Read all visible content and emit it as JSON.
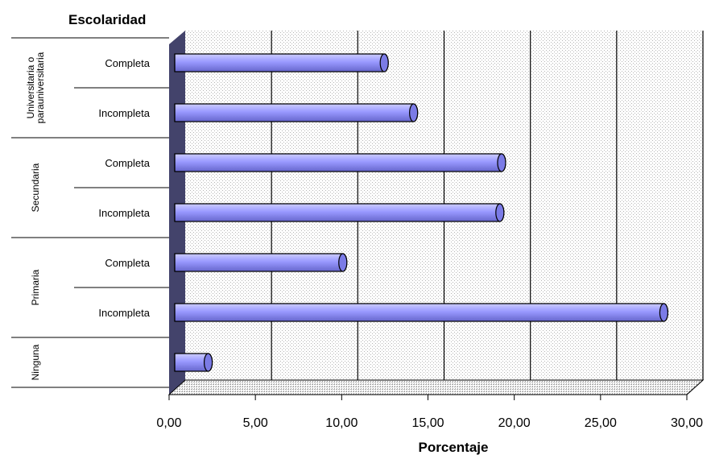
{
  "chart_data": {
    "type": "bar",
    "orientation": "horizontal",
    "title": "Escolaridad",
    "xlabel": "Porcentaje",
    "ylabel": "",
    "xlim": [
      0,
      30
    ],
    "xticks": [
      "0,00",
      "5,00",
      "10,00",
      "15,00",
      "20,00",
      "25,00",
      "30,00"
    ],
    "grid": true,
    "groups": [
      {
        "name": "Universitaria o parauniversitaria",
        "lines": [
          "Universitaria o",
          "parauniversitaria"
        ]
      },
      {
        "name": "Secundaria",
        "lines": [
          "Secundaria"
        ]
      },
      {
        "name": "Primaria",
        "lines": [
          "Primaria"
        ]
      },
      {
        "name": "Ninguna",
        "lines": [
          "Ninguna"
        ]
      }
    ],
    "categories": [
      {
        "group": "Universitaria o parauniversitaria",
        "label": "Completa",
        "value": 12.0
      },
      {
        "group": "Universitaria o parauniversitaria",
        "label": "Incompleta",
        "value": 13.7
      },
      {
        "group": "Secundaria",
        "label": "Completa",
        "value": 18.8
      },
      {
        "group": "Secundaria",
        "label": "Incompleta",
        "value": 18.7
      },
      {
        "group": "Primaria",
        "label": "Completa",
        "value": 9.6
      },
      {
        "group": "Primaria",
        "label": "Incompleta",
        "value": 28.2
      },
      {
        "group": "Ninguna",
        "label": "",
        "value": 1.8
      }
    ],
    "bar_color": "#9999ff"
  }
}
